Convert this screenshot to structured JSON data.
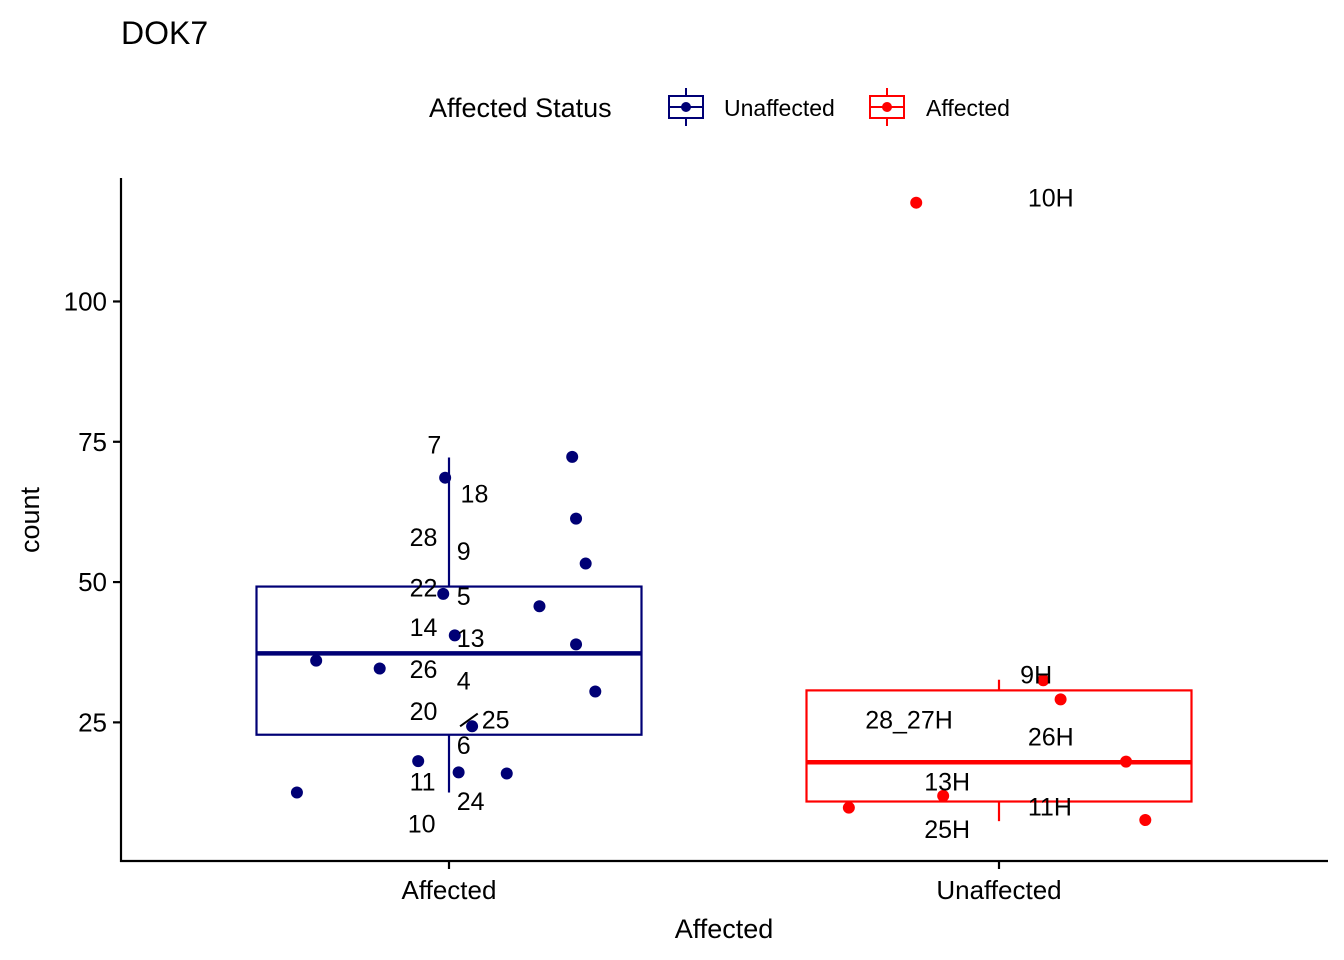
{
  "chart_data": {
    "type": "boxplot",
    "title": "DOK7",
    "xlabel": "Affected",
    "ylabel": "count",
    "ylim": [
      0.3,
      122
    ],
    "yticks": [
      25,
      50,
      75,
      100
    ],
    "categories": [
      "Affected",
      "Unaffected"
    ],
    "legend": {
      "title": "Affected Status",
      "position": "top",
      "entries": [
        {
          "label": "Unaffected",
          "color": "#000075"
        },
        {
          "label": "Affected",
          "color": "#ff0000"
        }
      ]
    },
    "groups": [
      {
        "category": "Affected",
        "status": "Unaffected",
        "color": "#000075",
        "box": {
          "q1": 22.8,
          "median": 37.3,
          "q3": 49.2,
          "whisker_low": 12.5,
          "whisker_high": 72.2
        },
        "points": [
          {
            "label": "7",
            "jitter": 0.64,
            "y": 72.3,
            "label_jitter": -0.04,
            "label_y": 74.5
          },
          {
            "label": "18",
            "jitter": -0.02,
            "y": 68.6,
            "label_jitter": 0.06,
            "label_y": 65.8
          },
          {
            "label": "9",
            "jitter": 0.66,
            "y": 61.3,
            "label_jitter": 0.04,
            "label_y": 55.5
          },
          {
            "label": "28",
            "jitter": 0.71,
            "y": 53.3,
            "label_jitter": -0.06,
            "label_y": 58.0
          },
          {
            "label": "22",
            "jitter": -0.03,
            "y": 47.9,
            "label_jitter": -0.06,
            "label_y": 49.0
          },
          {
            "label": "5",
            "jitter": 0.47,
            "y": 45.7,
            "label_jitter": 0.04,
            "label_y": 47.5
          },
          {
            "label": "14",
            "jitter": 0.03,
            "y": 40.5,
            "label_jitter": -0.06,
            "label_y": 42.0
          },
          {
            "label": "13",
            "jitter": 0.66,
            "y": 38.9,
            "label_jitter": 0.04,
            "label_y": 40.0
          },
          {
            "label": "26",
            "jitter": -0.69,
            "y": 36.0,
            "label_jitter": -0.06,
            "label_y": 34.5
          },
          {
            "label": "4",
            "jitter": -0.36,
            "y": 34.6,
            "label_jitter": 0.04,
            "label_y": 32.5
          },
          {
            "label": "20",
            "jitter": 0.76,
            "y": 30.5,
            "label_jitter": -0.06,
            "label_y": 27.0
          },
          {
            "label": "25",
            "jitter": 0.12,
            "y": 24.3,
            "label_jitter": 0.17,
            "label_y": 25.5,
            "leader": true
          },
          {
            "label": "6",
            "jitter": -0.16,
            "y": 18.1,
            "label_jitter": 0.04,
            "label_y": 21.0
          },
          {
            "label": "11",
            "jitter": 0.05,
            "y": 16.1,
            "label_jitter": -0.07,
            "label_y": 14.5
          },
          {
            "label": "24",
            "jitter": 0.3,
            "y": 15.9,
            "label_jitter": 0.04,
            "label_y": 11.0
          },
          {
            "label": "10",
            "jitter": -0.79,
            "y": 12.5,
            "label_jitter": -0.07,
            "label_y": 7.0
          }
        ]
      },
      {
        "category": "Unaffected",
        "status": "Affected",
        "color": "#ff0000",
        "box": {
          "q1": 10.9,
          "median": 17.9,
          "q3": 30.7,
          "whisker_low": 7.4,
          "whisker_high": 32.6
        },
        "points": [
          {
            "label": "10H",
            "jitter": -0.43,
            "y": 117.6,
            "label_jitter": 0.15,
            "label_y": 118.5
          },
          {
            "label": "9H",
            "jitter": 0.23,
            "y": 32.5,
            "label_jitter": 0.11,
            "label_y": 33.5
          },
          {
            "label": "28_27H",
            "jitter": 0.32,
            "y": 29.1,
            "label_jitter": -0.24,
            "label_y": 25.5
          },
          {
            "label": "26H",
            "jitter": 0.66,
            "y": 18.0,
            "label_jitter": 0.15,
            "label_y": 22.5
          },
          {
            "label": "13H",
            "jitter": -0.29,
            "y": 11.9,
            "label_jitter": -0.15,
            "label_y": 14.5
          },
          {
            "label": "11H",
            "jitter": -0.78,
            "y": 9.8,
            "label_jitter": 0.15,
            "label_y": 10.0
          },
          {
            "label": "25H",
            "jitter": 0.76,
            "y": 7.6,
            "label_jitter": -0.15,
            "label_y": 6.0
          }
        ]
      }
    ]
  }
}
